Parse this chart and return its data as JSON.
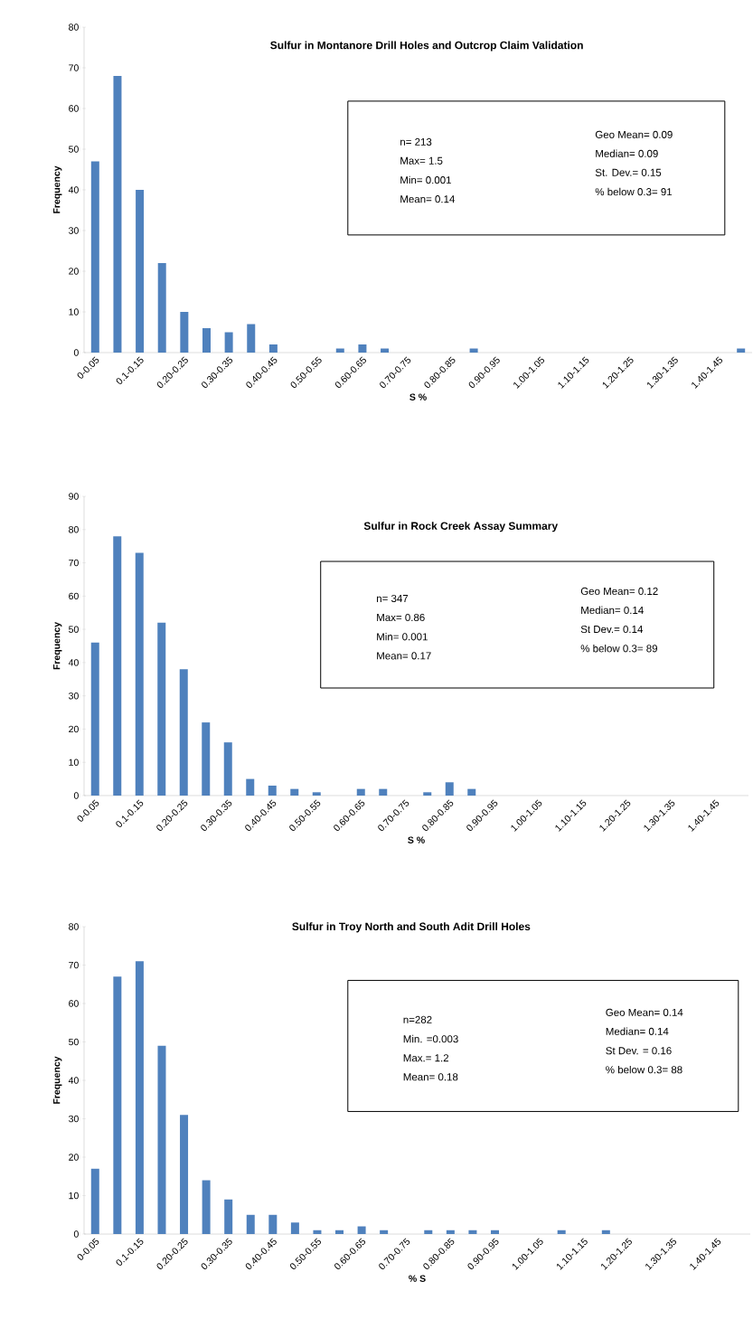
{
  "chart_data": [
    {
      "type": "bar",
      "title": "Sulfur in Montanore Drill Holes and Outcrop Claim Validation",
      "xlabel": "S %",
      "ylabel": "Frequency",
      "color": "#4f81bd",
      "categories": [
        "0-0.05",
        null,
        "0.1-0.15",
        null,
        "0.20-0.25",
        null,
        "0.30-0.35",
        null,
        "0.40-0.45",
        null,
        "0.50-0.55",
        null,
        "0.60-0.65",
        null,
        "0.70-0.75",
        null,
        "0.80-0.85",
        null,
        "0.90-0.95",
        null,
        "1.00-1.05",
        null,
        "1.10-1.15",
        null,
        "1.20-1.25",
        null,
        "1.30-1.35",
        null,
        "1.40-1.45",
        null
      ],
      "values": [
        47,
        68,
        40,
        22,
        10,
        6,
        5,
        7,
        2,
        0,
        0,
        1,
        2,
        1,
        0,
        0,
        0,
        1,
        0,
        0,
        0,
        0,
        0,
        0,
        0,
        0,
        0,
        0,
        0,
        1
      ],
      "ylim": [
        0,
        80
      ],
      "yticks": [
        0,
        10,
        20,
        30,
        40,
        50,
        60,
        70,
        80
      ],
      "annotations": [
        "n= 213",
        "Geo Mean= 0.09",
        "Max= 1.5",
        "Median= 0.09",
        "Min= 0.001",
        "St. Dev.= 0.15",
        "Mean= 0.14",
        "% below 0.3= 91"
      ]
    },
    {
      "type": "bar",
      "title": "Sulfur in Rock Creek Assay Summary",
      "xlabel": "S %",
      "ylabel": "Frequency",
      "color": "#4f81bd",
      "categories": [
        "0-0.05",
        null,
        "0.1-0.15",
        null,
        "0.20-0.25",
        null,
        "0.30-0.35",
        null,
        "0.40-0.45",
        null,
        "0.50-0.55",
        null,
        "0.60-0.65",
        null,
        "0.70-0.75",
        null,
        "0.80-0.85",
        null,
        "0.90-0.95",
        null,
        "1.00-1.05",
        null,
        "1.10-1.15",
        null,
        "1.20-1.25",
        null,
        "1.30-1.35",
        null,
        "1.40-1.45",
        null
      ],
      "values": [
        46,
        78,
        73,
        52,
        38,
        22,
        16,
        5,
        3,
        2,
        1,
        0,
        2,
        2,
        0,
        1,
        4,
        2,
        0,
        0,
        0,
        0,
        0,
        0,
        0,
        0,
        0,
        0,
        0,
        0
      ],
      "ylim": [
        0,
        90
      ],
      "yticks": [
        0,
        10,
        20,
        30,
        40,
        50,
        60,
        70,
        80,
        90
      ],
      "annotations": [
        "n= 347",
        "Geo Mean= 0.12",
        "Max= 0.86",
        "Median= 0.14",
        "Min= 0.001",
        "St Dev.= 0.14",
        "Mean= 0.17",
        "% below 0.3= 89"
      ]
    },
    {
      "type": "bar",
      "title": "Sulfur in Troy North and South Adit Drill Holes",
      "xlabel": "% S",
      "ylabel": "Frequency",
      "color": "#4f81bd",
      "categories": [
        "0-0.05",
        null,
        "0.1-0.15",
        null,
        "0.20-0.25",
        null,
        "0.30-0.35",
        null,
        "0.40-0.45",
        null,
        "0.50-0.55",
        null,
        "0.60-0.65",
        null,
        "0.70-0.75",
        null,
        "0.80-0.85",
        null,
        "0.90-0.95",
        null,
        "1.00-1.05",
        null,
        "1.10-1.15",
        null,
        "1.20-1.25",
        null,
        "1.30-1.35",
        null,
        "1.40-1.45",
        null
      ],
      "values": [
        17,
        67,
        71,
        49,
        31,
        14,
        9,
        5,
        5,
        3,
        1,
        1,
        2,
        1,
        0,
        1,
        1,
        1,
        1,
        0,
        0,
        1,
        0,
        1,
        0,
        0,
        0,
        0,
        0,
        0
      ],
      "ylim": [
        0,
        80
      ],
      "yticks": [
        0,
        10,
        20,
        30,
        40,
        50,
        60,
        70,
        80
      ],
      "annotations": [
        "n=282",
        "Geo Mean= 0.14",
        "Min. =0.003",
        "Median= 0.14",
        "Max.= 1.2",
        "St Dev. = 0.16",
        "Mean= 0.18",
        "% below 0.3= 88"
      ]
    }
  ]
}
